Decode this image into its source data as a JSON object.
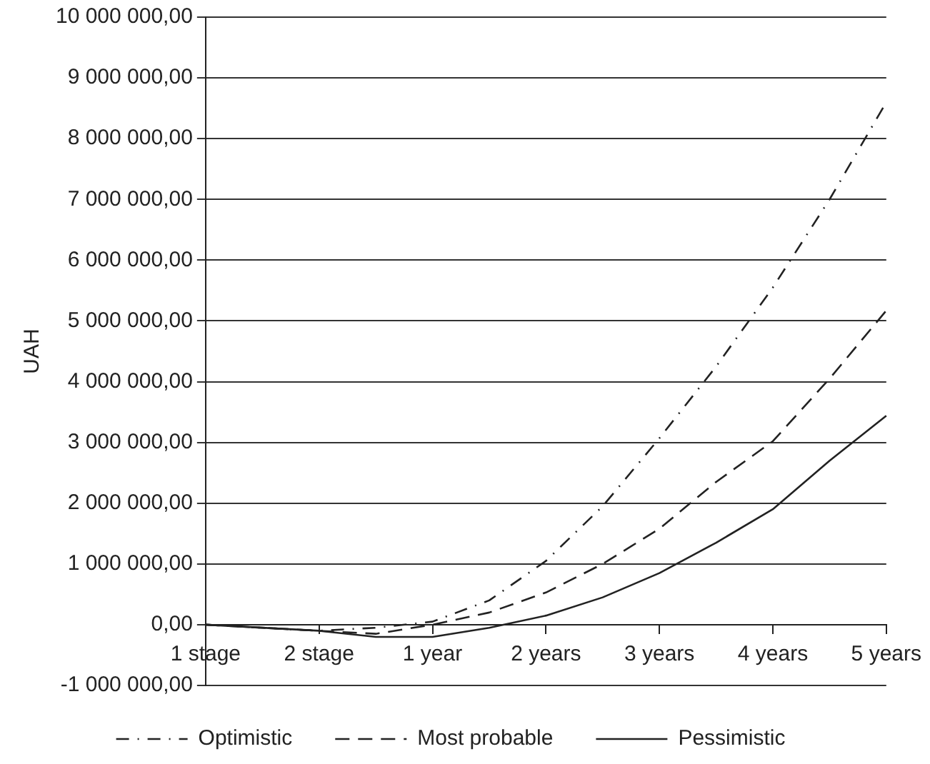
{
  "chart_data": {
    "type": "line",
    "ylabel": "UAH",
    "categories": [
      "1 stage",
      null,
      "2 stage",
      null,
      "1 year",
      null,
      "2 years",
      null,
      "3 years",
      null,
      "4 years",
      null,
      "5 years"
    ],
    "ylim": [
      -1000000,
      10000000
    ],
    "yticks": [
      {
        "value": -1000000,
        "label": "-1 000 000,00"
      },
      {
        "value": 0,
        "label": "0,00"
      },
      {
        "value": 1000000,
        "label": "1 000 000,00"
      },
      {
        "value": 2000000,
        "label": "2 000 000,00"
      },
      {
        "value": 3000000,
        "label": "3 000 000,00"
      },
      {
        "value": 4000000,
        "label": "4 000 000,00"
      },
      {
        "value": 5000000,
        "label": "5 000 000,00"
      },
      {
        "value": 6000000,
        "label": "6 000 000,00"
      },
      {
        "value": 7000000,
        "label": "7 000 000,00"
      },
      {
        "value": 8000000,
        "label": "8 000 000,00"
      },
      {
        "value": 9000000,
        "label": "9 000 000,00"
      },
      {
        "value": 10000000,
        "label": "10 000 000,00"
      }
    ],
    "grid": "y",
    "legend": "bottom",
    "marker": "none",
    "series": [
      {
        "name": "Optimistic",
        "color": "#222222",
        "line_style": "dotted",
        "values": [
          0,
          -50000,
          -100000,
          -50000,
          50000,
          400000,
          1050000,
          1950000,
          3070000,
          4250000,
          5550000,
          7000000,
          8600000
        ]
      },
      {
        "name": "Most probable",
        "color": "#222222",
        "line_style": "dashed",
        "values": [
          0,
          -50000,
          -100000,
          -150000,
          0,
          200000,
          530000,
          1000000,
          1580000,
          2350000,
          3020000,
          4050000,
          5170000
        ]
      },
      {
        "name": "Pessimistic",
        "color": "#222222",
        "line_style": "solid",
        "values": [
          0,
          -50000,
          -100000,
          -200000,
          -200000,
          -50000,
          150000,
          450000,
          850000,
          1350000,
          1900000,
          2700000,
          3440000
        ]
      }
    ]
  }
}
